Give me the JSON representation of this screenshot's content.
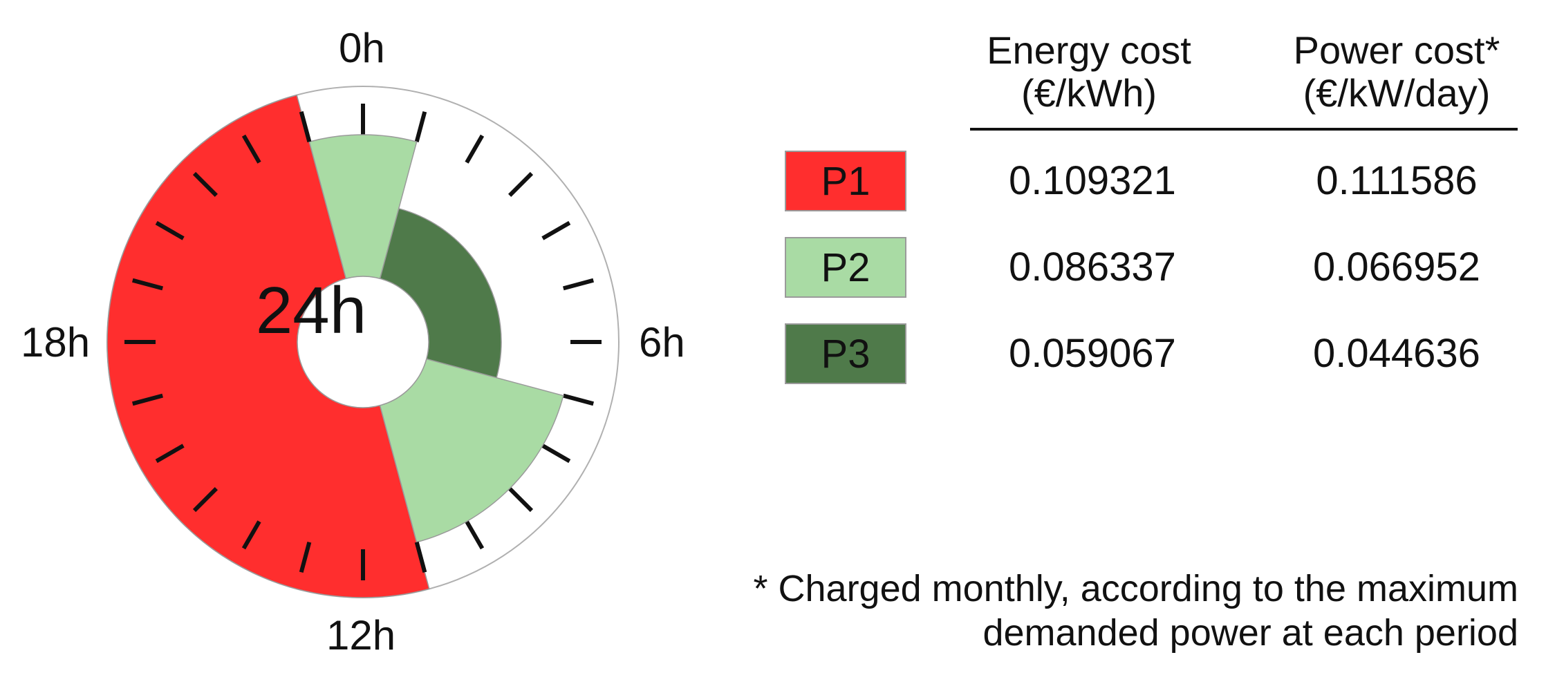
{
  "chart_data": [
    {
      "type": "radial",
      "center_label": "24h",
      "hour_labels": [
        "0h",
        "6h",
        "12h",
        "18h"
      ],
      "colors": {
        "P1": "#ff2e2e",
        "P2": "#a9dba4",
        "P3": "#4f7a4a"
      },
      "segments": [
        {
          "period": "P1",
          "start_hour": 11.0,
          "end_hour": 23.0
        },
        {
          "period": "P2",
          "start_hour": 23.0,
          "end_hour": 1.0
        },
        {
          "period": "P3",
          "start_hour": 1.0,
          "end_hour": 7.0
        },
        {
          "period": "P2",
          "start_hour": 7.0,
          "end_hour": 11.0
        }
      ]
    },
    {
      "type": "table",
      "columns": [
        {
          "line1": "Energy cost",
          "line2": "(€/kWh)"
        },
        {
          "line1": "Power cost*",
          "line2": "(€/kW/day)"
        }
      ],
      "rows": [
        {
          "period": "P1",
          "energy": "0.109321",
          "power": "0.111586"
        },
        {
          "period": "P2",
          "energy": "0.086337",
          "power": "0.066952"
        },
        {
          "period": "P3",
          "energy": "0.059067",
          "power": "0.044636"
        }
      ]
    }
  ],
  "footnote": {
    "line1": "* Charged monthly, according to the maximum",
    "line2": "demanded power at each period"
  }
}
